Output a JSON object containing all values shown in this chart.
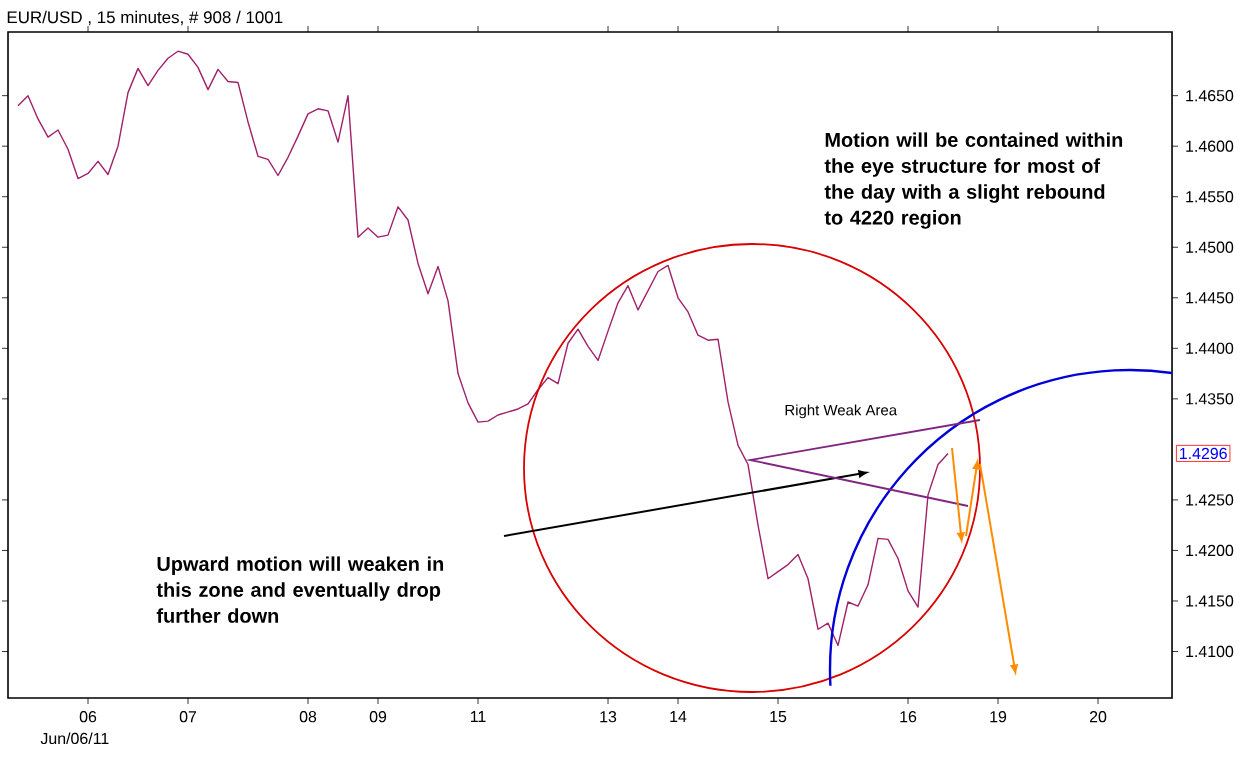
{
  "chart_data": {
    "type": "line",
    "title": "EUR/USD , 15 minutes, # 908 / 1001",
    "categories": [
      null,
      null,
      null,
      null,
      null,
      null,
      null,
      null,
      "06",
      null,
      null,
      null,
      null,
      null,
      null,
      null,
      null,
      null,
      "07",
      null,
      null,
      null,
      null,
      null,
      null,
      null,
      null,
      null,
      null,
      null,
      "08",
      null,
      null,
      null,
      null,
      null,
      null,
      "09",
      null,
      null,
      null,
      null,
      null,
      null,
      null,
      null,
      null,
      "11",
      null,
      null,
      null,
      null,
      null,
      null,
      null,
      null,
      null,
      null,
      null,
      null,
      "13",
      null,
      null,
      null,
      null,
      null,
      null,
      "14",
      null,
      null,
      null,
      null,
      null,
      null,
      null,
      null,
      null,
      "15",
      null,
      null,
      null,
      null,
      null,
      null,
      null,
      null,
      null,
      null,
      null,
      null,
      "16",
      null,
      null,
      null,
      null,
      null,
      null,
      null,
      null,
      "19",
      null,
      null,
      null,
      null,
      null,
      null,
      null,
      null,
      null,
      "20",
      null,
      null,
      null,
      null,
      null,
      null,
      null
    ],
    "series": [
      {
        "color": "#a0206a",
        "values": [
          null,
          1.464,
          1.465,
          1.4627,
          1.4609,
          1.4616,
          1.4597,
          1.4568,
          1.4573,
          1.4585,
          1.4572,
          1.46,
          1.4653,
          1.4677,
          1.466,
          1.4675,
          1.4687,
          1.4694,
          1.4691,
          1.4678,
          1.4656,
          1.4676,
          1.4664,
          1.4663,
          1.4624,
          1.459,
          1.4587,
          1.4571,
          1.4589,
          1.461,
          1.4632,
          1.4637,
          1.4635,
          1.4604,
          1.465,
          1.451,
          1.4519,
          1.451,
          1.4512,
          1.454,
          1.4527,
          1.4484,
          1.4454,
          1.4481,
          1.4447,
          1.4375,
          1.4346,
          1.4327,
          1.4328,
          1.4334,
          1.4337,
          1.434,
          1.4345,
          1.4359,
          1.4371,
          1.4365,
          1.4405,
          1.4419,
          1.4402,
          1.4388,
          1.4417,
          1.4445,
          1.4462,
          1.4438,
          1.4457,
          1.4476,
          1.4482,
          1.445,
          1.4436,
          1.4413,
          1.4408,
          1.4409,
          1.4347,
          1.4304,
          1.4285,
          1.4225,
          1.4172,
          1.4179,
          1.4186,
          1.4196,
          1.4172,
          1.4122,
          1.4128,
          1.4106,
          1.4149,
          1.4145,
          1.4166,
          1.4212,
          1.4211,
          1.4192,
          1.416,
          1.4144,
          1.4255,
          1.4285,
          1.4296,
          null,
          null,
          null,
          null,
          null,
          null,
          null,
          null,
          null,
          null,
          null,
          null,
          null,
          null,
          null,
          null,
          null,
          null,
          null,
          null,
          null,
          null
        ]
      }
    ],
    "ylim": [
      1.4054,
      1.4713
    ],
    "yticks": [
      {
        "value": 1.41,
        "label": "1.4100"
      },
      {
        "value": 1.415,
        "label": "1.4150"
      },
      {
        "value": 1.42,
        "label": "1.4200"
      },
      {
        "value": 1.425,
        "label": "1.4250"
      },
      {
        "value": 1.435,
        "label": "1.4350"
      },
      {
        "value": 1.44,
        "label": "1.4400"
      },
      {
        "value": 1.445,
        "label": "1.4450"
      },
      {
        "value": 1.45,
        "label": "1.4500"
      },
      {
        "value": 1.455,
        "label": "1.4550"
      },
      {
        "value": 1.46,
        "label": "1.4600"
      },
      {
        "value": 1.465,
        "label": "1.4650"
      }
    ],
    "annotations": [
      "Motion will be contained within the eye structure for most of the day with a slight rebound to 4220 region",
      "Upward motion will weaken in this zone and eventually drop further down",
      "Right Weak Area",
      "Jun/06/11",
      "1.4296"
    ]
  }
}
